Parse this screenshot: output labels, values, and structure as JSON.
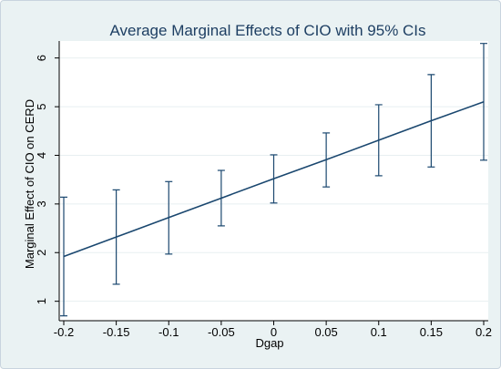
{
  "chart_data": {
    "type": "line",
    "title": "Average Marginal Effects of CIO with 95% CIs",
    "xlabel": "Dgap",
    "ylabel": "Marginal Effect of CIO on CERD",
    "x": [
      -0.2,
      -0.15,
      -0.1,
      -0.05,
      0,
      0.05,
      0.1,
      0.15,
      0.2
    ],
    "x_tick_labels": [
      "-0.2",
      "-0.15",
      "-0.1",
      "-0.05",
      "0",
      "0.05",
      "0.1",
      "0.15",
      "0.2"
    ],
    "y_ticks": [
      1,
      2,
      3,
      4,
      5,
      6
    ],
    "y_tick_labels": [
      "1",
      "2",
      "3",
      "4",
      "5",
      "6"
    ],
    "xlim": [
      -0.2,
      0.2
    ],
    "ylim": [
      0.6,
      6.35
    ],
    "grid": true,
    "series": [
      {
        "values": [
          1.92,
          2.32,
          2.72,
          3.12,
          3.52,
          3.91,
          4.31,
          4.71,
          5.1
        ],
        "ci_low": [
          0.7,
          1.35,
          1.97,
          2.55,
          3.02,
          3.35,
          3.58,
          3.76,
          3.9
        ],
        "ci_high": [
          3.14,
          3.29,
          3.46,
          3.69,
          4.01,
          4.46,
          5.04,
          5.66,
          6.3
        ]
      }
    ],
    "colors": {
      "outer_background": "#eaf2f3",
      "plot_background": "#ffffff",
      "line": "#1a476f",
      "grid": "#e8eff1",
      "axis": "#000000",
      "title": "#1e3f63",
      "text": "#000000"
    }
  }
}
